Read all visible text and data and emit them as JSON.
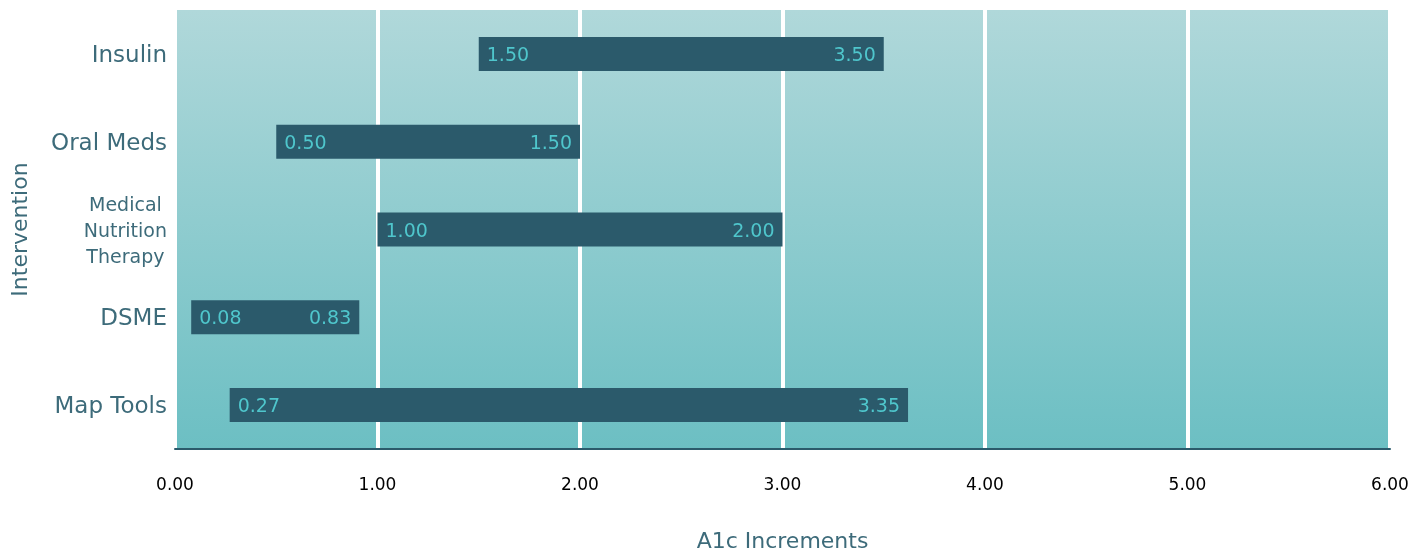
{
  "chart_data": {
    "type": "bar",
    "orientation": "horizontal",
    "xlabel": "A1c Increments",
    "ylabel": "Intervention",
    "categories": [
      "Insulin",
      "Oral Meds",
      "Medical Nutrition Therapy",
      "DSME",
      "Map Tools"
    ],
    "base": [
      1.5,
      0.5,
      1.0,
      0.08,
      0.27
    ],
    "values": [
      2.0,
      1.5,
      2.0,
      0.83,
      3.35
    ],
    "value_labels": [
      "3.50",
      "1.50",
      "2.00",
      "0.83",
      "3.35"
    ],
    "color": "#2b5a6b",
    "xlim": [
      0,
      6
    ],
    "xticks": [
      {
        "value": 0,
        "label": "0.00"
      },
      {
        "value": 1,
        "label": "1.00"
      },
      {
        "value": 2,
        "label": "2.00"
      },
      {
        "value": 3,
        "label": "3.00"
      },
      {
        "value": 4,
        "label": "4.00"
      },
      {
        "value": 5,
        "label": "5.00"
      },
      {
        "value": 6,
        "label": "6.00"
      }
    ],
    "annotations": [
      {
        "text": "1.50",
        "x": 1.5,
        "y": "Insulin"
      },
      {
        "text": "0.50",
        "x": 0.5,
        "y": "Oral Meds"
      },
      {
        "text": "1.00",
        "x": 1.0,
        "y": "Medical Nutrition Therapy"
      },
      {
        "text": "0.08",
        "x": 0.08,
        "y": "DSME"
      },
      {
        "text": "0.27",
        "x": 0.27,
        "y": "Map Tools"
      }
    ],
    "grid": "x"
  }
}
